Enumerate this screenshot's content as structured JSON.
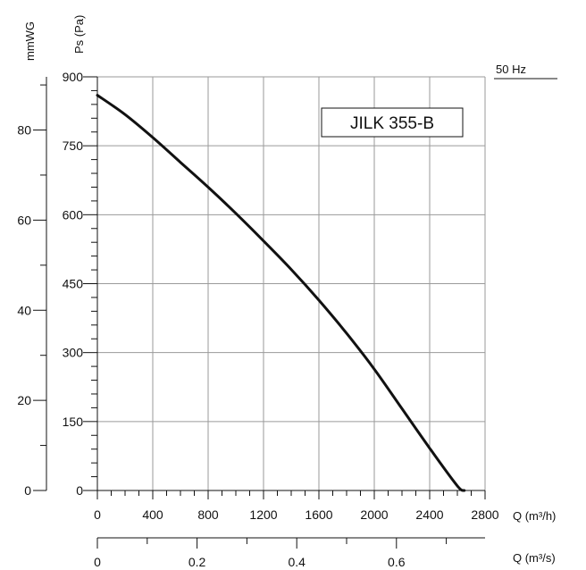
{
  "chart_data": {
    "type": "line",
    "model_label": "JILK 355-B",
    "frequency_label": "50 Hz",
    "x_primary": {
      "label": "Q (m³/h)",
      "range": [
        0,
        2800
      ],
      "ticks": [
        0,
        400,
        800,
        1200,
        1600,
        2000,
        2400,
        2800
      ],
      "tick_labels": [
        "0",
        "400",
        "800",
        "1200",
        "1600",
        "2000",
        "2400",
        "2800"
      ]
    },
    "x_secondary": {
      "label": "Q (m³/s)",
      "range": [
        0,
        0.7778
      ],
      "ticks": [
        0,
        0.2,
        0.4,
        0.6
      ],
      "tick_labels": [
        "0",
        "0.2",
        "0.4",
        "0.6"
      ]
    },
    "y_primary": {
      "label": "Ps (Pa)",
      "range": [
        0,
        900
      ],
      "ticks": [
        0,
        150,
        300,
        450,
        600,
        750,
        900
      ],
      "tick_labels": [
        "0",
        "150",
        "300",
        "450",
        "600",
        "750",
        "900"
      ]
    },
    "y_secondary": {
      "label": "mmWG",
      "range": [
        0,
        91.8
      ],
      "ticks": [
        0,
        20,
        40,
        60,
        80
      ],
      "tick_labels": [
        "0",
        "20",
        "40",
        "60",
        "80"
      ]
    },
    "grid": true,
    "series": [
      {
        "color": "#111111",
        "x": [
          0,
          200,
          400,
          600,
          800,
          1000,
          1200,
          1400,
          1600,
          1800,
          2000,
          2200,
          2400,
          2600,
          2650
        ],
        "y": [
          860,
          818,
          768,
          714,
          660,
          603,
          543,
          481,
          414,
          342,
          264,
          178,
          92,
          10,
          0
        ]
      }
    ]
  }
}
